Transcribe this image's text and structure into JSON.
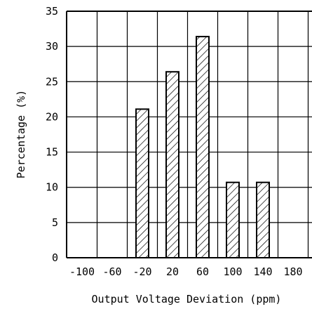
{
  "chart_data": {
    "type": "bar",
    "title": "",
    "xlabel": "Output Voltage Deviation (ppm)",
    "ylabel": "Percentage (%)",
    "x_tick_labels": [
      "-100",
      "-60",
      "-20",
      "20",
      "60",
      "100",
      "140",
      "180"
    ],
    "y_tick_labels": [
      "0",
      "5",
      "10",
      "15",
      "20",
      "25",
      "30",
      "35"
    ],
    "xlim": [
      -100,
      180
    ],
    "ylim": [
      0,
      35
    ],
    "grid": true,
    "bar_fill": "diagonal hatch",
    "colors": {
      "line": "#000000",
      "background": "#ffffff"
    },
    "bars": [
      {
        "x": -20,
        "value": 21.1
      },
      {
        "x": 20,
        "value": 26.4
      },
      {
        "x": 60,
        "value": 31.4
      },
      {
        "x": 100,
        "value": 10.7
      },
      {
        "x": 140,
        "value": 10.7
      }
    ]
  }
}
